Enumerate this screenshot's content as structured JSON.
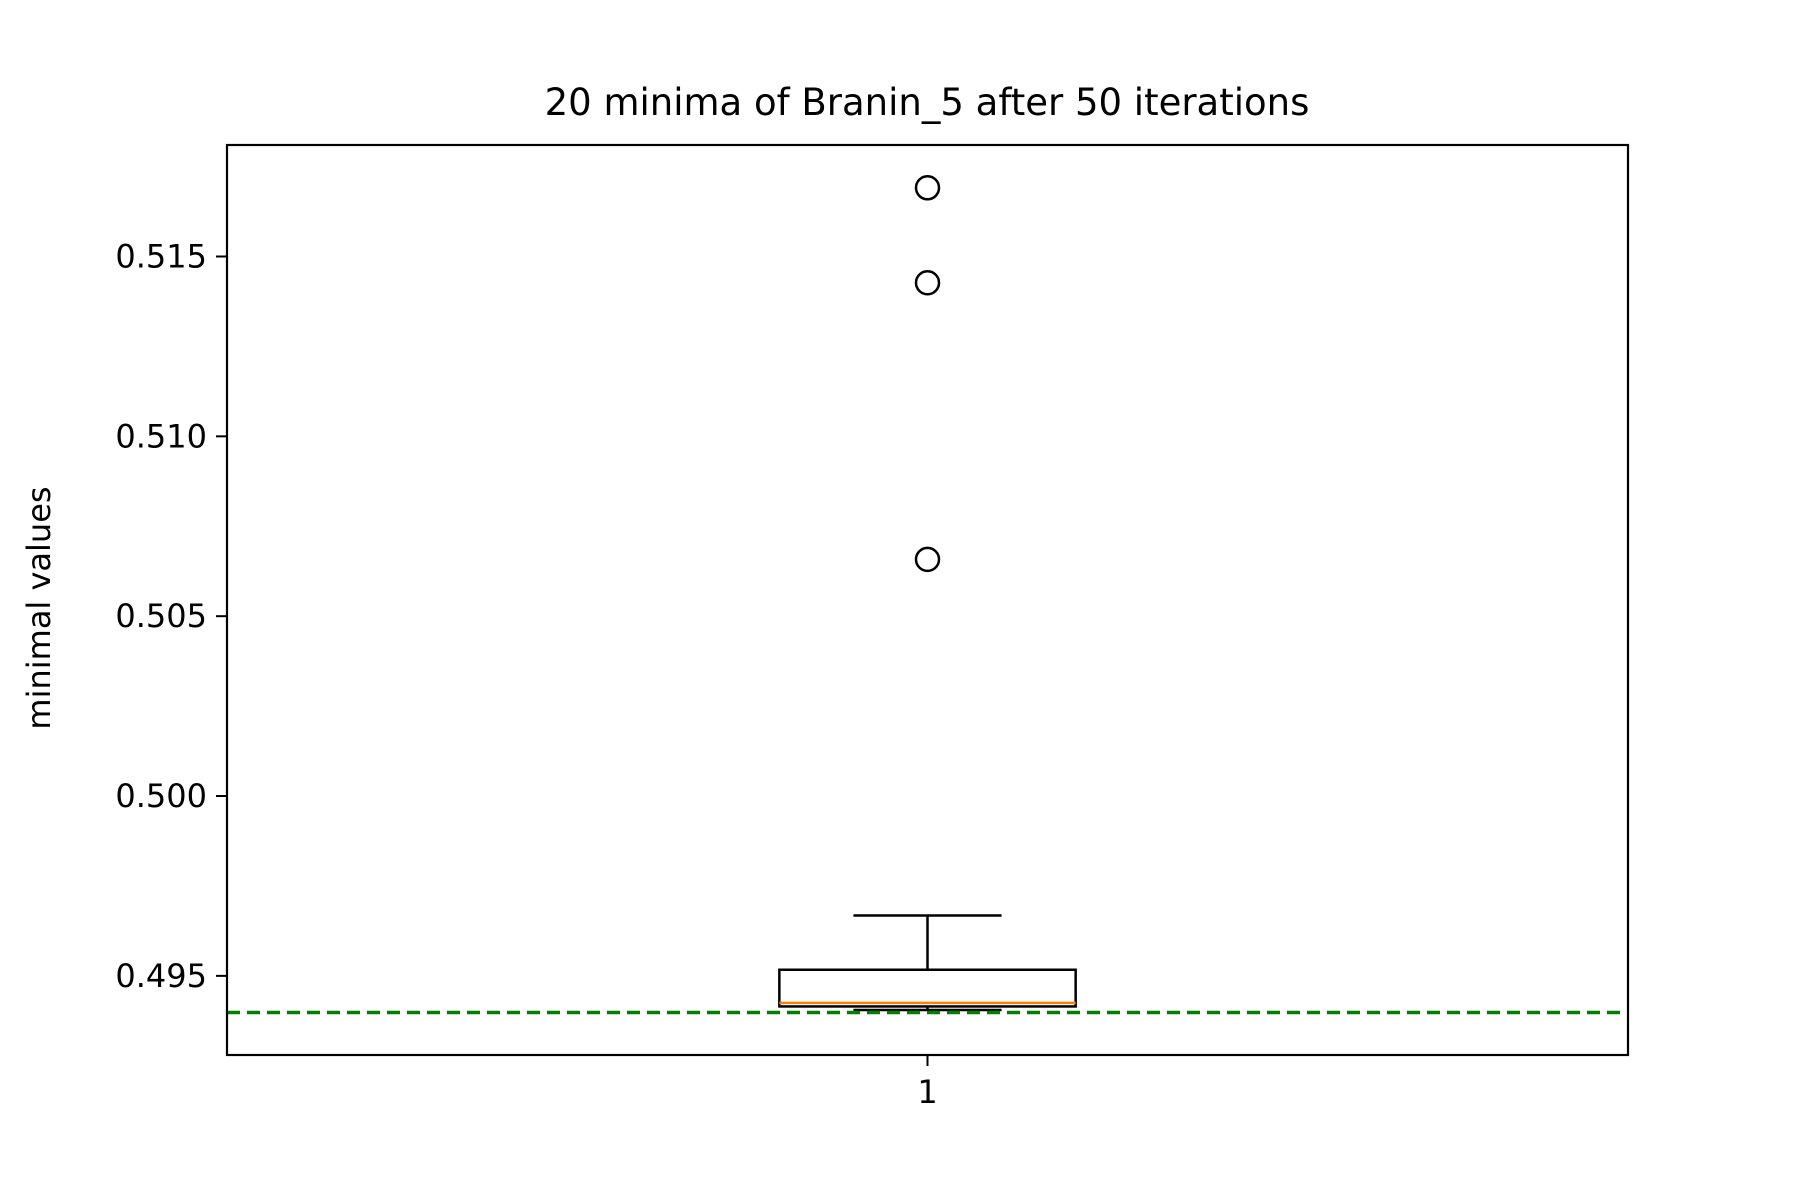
{
  "chart_data": {
    "type": "box",
    "title": "20 minima of Branin_5 after 50 iterations",
    "xlabel": "",
    "ylabel": "minimal values",
    "x_ticks": [
      "1"
    ],
    "y_ticks": [
      "0.495",
      "0.500",
      "0.505",
      "0.510",
      "0.515"
    ],
    "y_tick_values": [
      0.495,
      0.5,
      0.505,
      0.51,
      0.515
    ],
    "ylim": [
      0.4928,
      0.5181
    ],
    "grid": false,
    "boxes": [
      {
        "category": "1",
        "whisker_low": 0.49405,
        "q1": 0.49415,
        "median": 0.49425,
        "q3": 0.49517,
        "whisker_high": 0.49668,
        "outliers": [
          0.50658,
          0.51427,
          0.51691
        ]
      }
    ],
    "reference_line": {
      "y": 0.49398,
      "style": "dashed",
      "color": "#007f00"
    },
    "colors": {
      "box": "#000000",
      "median": "#ff7f0e",
      "reference": "#007f00"
    }
  }
}
